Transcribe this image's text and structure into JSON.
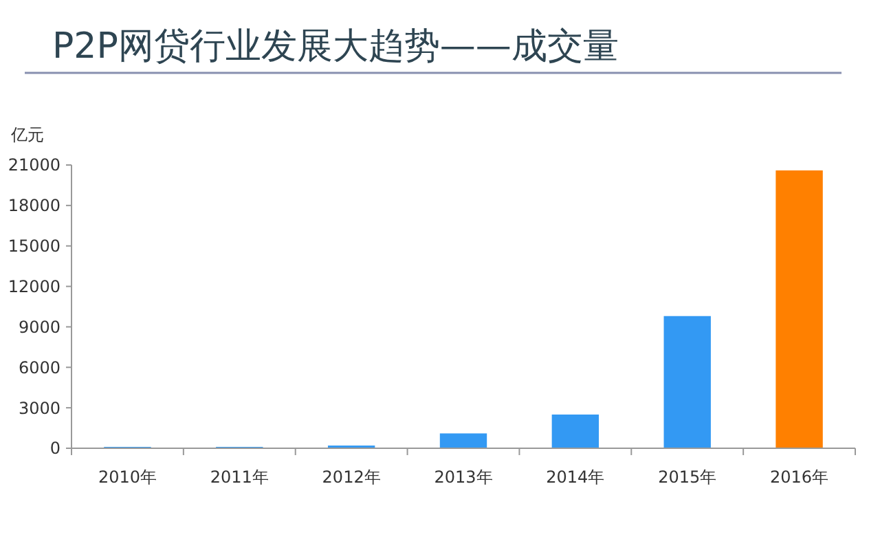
{
  "chart_data": {
    "type": "bar",
    "title": "P2P网贷行业发展大趋势——成交量",
    "ylabel": "亿元",
    "categories": [
      "2010年",
      "2011年",
      "2012年",
      "2013年",
      "2014年",
      "2015年",
      "2016年"
    ],
    "values": [
      100,
      100,
      200,
      1100,
      2500,
      9800,
      20600
    ],
    "colors": [
      "#3399f3",
      "#3399f3",
      "#3399f3",
      "#3399f3",
      "#3399f3",
      "#3399f3",
      "#ff8000"
    ],
    "ylim": [
      0,
      21000
    ],
    "yticks": [
      0,
      3000,
      6000,
      9000,
      12000,
      15000,
      18000,
      21000
    ],
    "grid": false
  }
}
